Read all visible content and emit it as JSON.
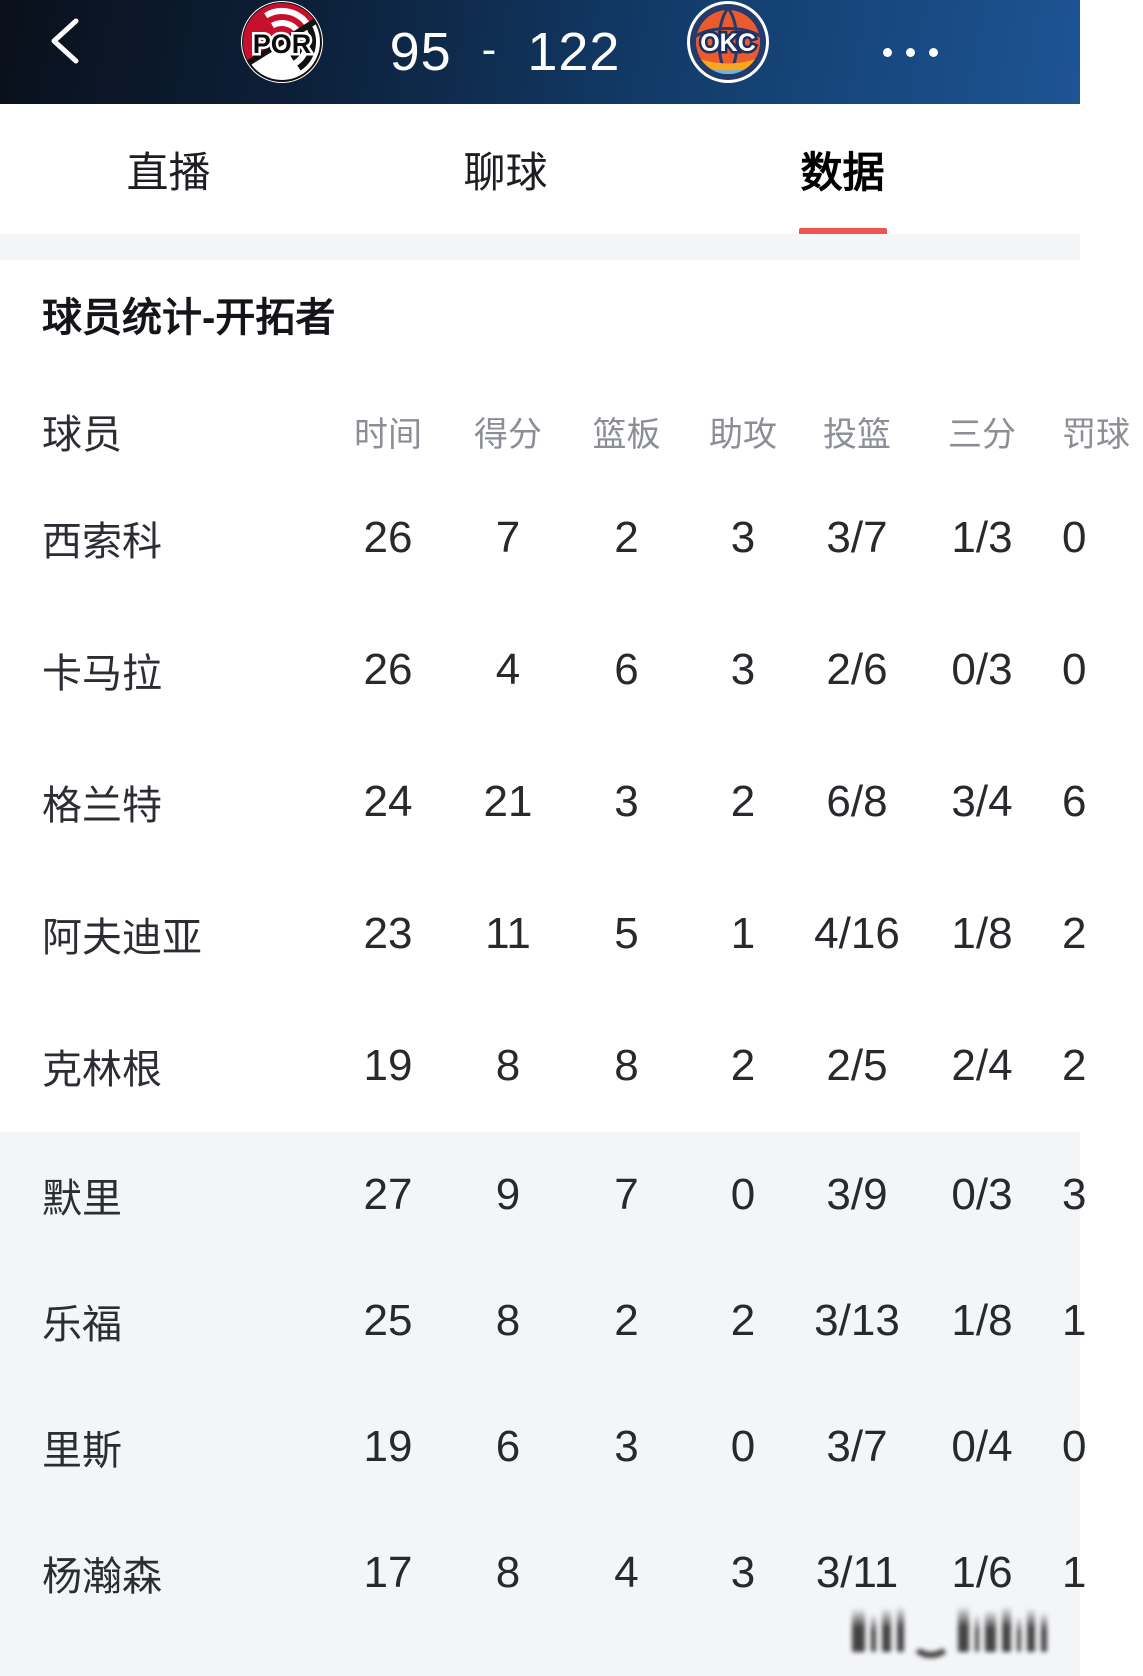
{
  "header": {
    "home_abbr": "POR",
    "score_home": "95",
    "score_divider": "-",
    "score_away": "122",
    "away_abbr": "OKC"
  },
  "tabs": [
    {
      "label": "直播",
      "active": false
    },
    {
      "label": "聊球",
      "active": false
    },
    {
      "label": "数据",
      "active": true
    }
  ],
  "section": {
    "title": "球员统计-开拓者"
  },
  "table": {
    "columns": [
      "球员",
      "时间",
      "得分",
      "篮板",
      "助攻",
      "投篮",
      "三分",
      "罚球"
    ],
    "bench_start_index": 5,
    "rows": [
      {
        "name": "西索科",
        "stats": [
          "26",
          "7",
          "2",
          "3",
          "3/7",
          "1/3",
          "0"
        ]
      },
      {
        "name": "卡马拉",
        "stats": [
          "26",
          "4",
          "6",
          "3",
          "2/6",
          "0/3",
          "0"
        ]
      },
      {
        "name": "格兰特",
        "stats": [
          "24",
          "21",
          "3",
          "2",
          "6/8",
          "3/4",
          "6"
        ]
      },
      {
        "name": "阿夫迪亚",
        "stats": [
          "23",
          "11",
          "5",
          "1",
          "4/16",
          "1/8",
          "2"
        ]
      },
      {
        "name": "克林根",
        "stats": [
          "19",
          "8",
          "8",
          "2",
          "2/5",
          "2/4",
          "2"
        ]
      },
      {
        "name": "默里",
        "stats": [
          "27",
          "9",
          "7",
          "0",
          "3/9",
          "0/3",
          "3"
        ]
      },
      {
        "name": "乐福",
        "stats": [
          "25",
          "8",
          "2",
          "2",
          "3/13",
          "1/8",
          "1"
        ]
      },
      {
        "name": "里斯",
        "stats": [
          "19",
          "6",
          "3",
          "0",
          "3/7",
          "0/4",
          "0"
        ]
      },
      {
        "name": "杨瀚森",
        "stats": [
          "17",
          "8",
          "4",
          "3",
          "3/11",
          "1/6",
          "1"
        ]
      }
    ]
  },
  "colors": {
    "accent_red": "#ee5452",
    "header_gradient": [
      "#0a101b",
      "#0c1f38",
      "#123c6a",
      "#1d5494"
    ],
    "section_gray": "#f4f5f7",
    "text_dark": "#28292d",
    "text_gray": "#8b8e95",
    "por_red": "#c8102e",
    "okc_navy": "#233a6d",
    "okc_orange": "#ec5b2e",
    "okc_yellow": "#f7a81f",
    "okc_blue": "#64b6e3"
  }
}
